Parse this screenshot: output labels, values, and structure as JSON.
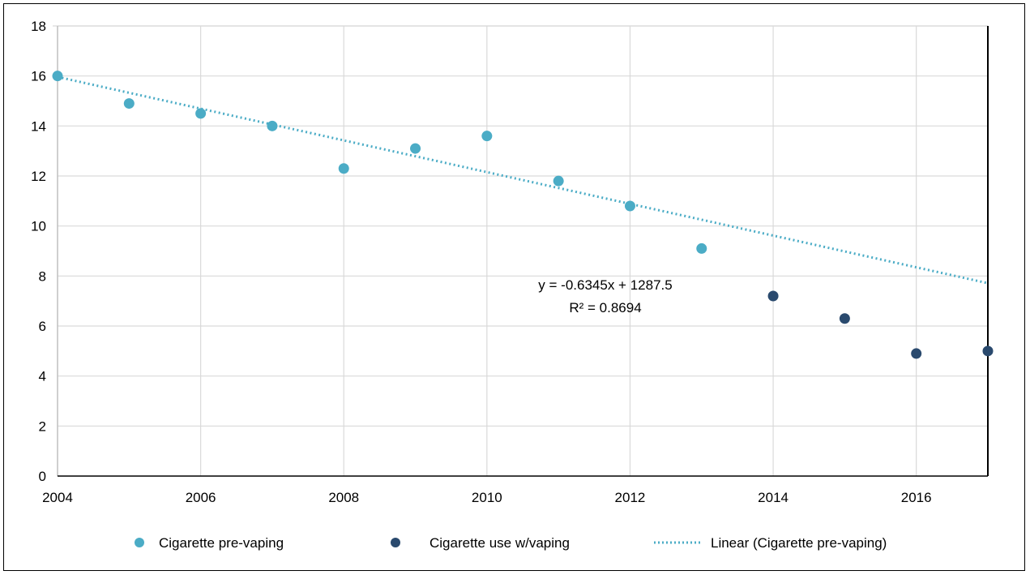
{
  "chart_data": {
    "type": "scatter",
    "title": "",
    "xlabel": "",
    "ylabel": "",
    "xlim": [
      2004,
      2017
    ],
    "ylim": [
      0,
      18
    ],
    "x_ticks": [
      2004,
      2006,
      2008,
      2010,
      2012,
      2014,
      2016
    ],
    "y_ticks": [
      0,
      2,
      4,
      6,
      8,
      10,
      12,
      14,
      16,
      18
    ],
    "x_tick_labels": [
      "2004",
      "2006",
      "2008",
      "2010",
      "2012",
      "2014",
      "2016"
    ],
    "y_tick_labels": [
      "0",
      "2",
      "4",
      "6",
      "8",
      "10",
      "12",
      "14",
      "16",
      "18"
    ],
    "grid": true,
    "legend_position": "bottom",
    "series": [
      {
        "name": "Cigarette pre-vaping",
        "color": "#4bacc6",
        "points": [
          {
            "x": 2004,
            "y": 16.0
          },
          {
            "x": 2005,
            "y": 14.9
          },
          {
            "x": 2006,
            "y": 14.5
          },
          {
            "x": 2007,
            "y": 14.0
          },
          {
            "x": 2008,
            "y": 12.3
          },
          {
            "x": 2009,
            "y": 13.1
          },
          {
            "x": 2010,
            "y": 13.6
          },
          {
            "x": 2011,
            "y": 11.8
          },
          {
            "x": 2012,
            "y": 10.8
          },
          {
            "x": 2013,
            "y": 9.1
          }
        ]
      },
      {
        "name": "Cigarette use w/vaping",
        "color": "#2a4a6e",
        "points": [
          {
            "x": 2014,
            "y": 7.2
          },
          {
            "x": 2015,
            "y": 6.3
          },
          {
            "x": 2016,
            "y": 4.9
          },
          {
            "x": 2017,
            "y": 5.0
          }
        ]
      }
    ],
    "trendline": {
      "name": "Linear (Cigarette pre-vaping)",
      "color": "#4bacc6",
      "style": "dotted",
      "slope": -0.6345,
      "intercept": 1287.5,
      "x_range": [
        2004,
        2017
      ],
      "equation_label": "y = -0.6345x + 1287.5",
      "r2_label": "R² = 0.8694"
    }
  }
}
